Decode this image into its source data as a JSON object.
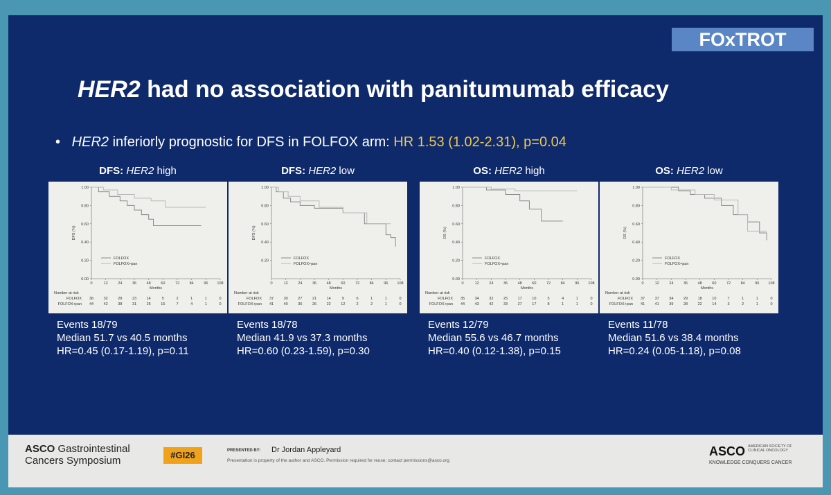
{
  "logo": "FOxTROT",
  "title": {
    "italic": "HER2",
    "rest": " had no association with panitumumab efficacy"
  },
  "bullet": {
    "italic": "HER2",
    "text": " inferiorly prognostic for DFS in FOLFOX arm: ",
    "highlight": "HR 1.53 (1.02-2.31), p=0.04"
  },
  "panels": [
    {
      "heading": {
        "bold": "DFS:",
        "italic": "HER2",
        "rest": " high"
      },
      "chart": {
        "type": "step",
        "ylabel": "DFS (%)",
        "xlabel": "Months",
        "xlim": [
          0,
          108
        ],
        "xticks": [
          0,
          12,
          24,
          36,
          48,
          60,
          72,
          84,
          96,
          108
        ],
        "ylim": [
          0,
          1
        ],
        "yticks": [
          {
            "value": 0,
            "label": "0.00"
          },
          {
            "value": 0.2,
            "label": "0.20"
          },
          {
            "value": 0.4,
            "label": "0.40"
          },
          {
            "value": 0.6,
            "label": "0.60"
          },
          {
            "value": 0.8,
            "label": "0.80"
          },
          {
            "value": 1,
            "label": "1.00"
          }
        ],
        "series": [
          {
            "name": "FOLFOX",
            "color": "#8a8a8a",
            "x": [
              0,
              6,
              15,
              24,
              30,
              36,
              42,
              48,
              52,
              92
            ],
            "values": [
              1,
              0.95,
              0.9,
              0.85,
              0.8,
              0.75,
              0.7,
              0.65,
              0.58,
              0.58
            ]
          },
          {
            "name": "FOLFOX+pan",
            "color": "#b8b8b8",
            "x": [
              0,
              10,
              22,
              36,
              50,
              62,
              96
            ],
            "values": [
              1,
              0.97,
              0.92,
              0.88,
              0.85,
              0.78,
              0.78
            ]
          }
        ],
        "risk_title": "Number at risk",
        "risk": [
          [
            36,
            32,
            28,
            23,
            14,
            5,
            2,
            1,
            1,
            0
          ],
          [
            44,
            42,
            38,
            31,
            25,
            16,
            7,
            4,
            1,
            0
          ]
        ]
      },
      "events": "Events 18/79",
      "median": "Median 51.7 vs 40.5 months",
      "hr": "HR=0.45 (0.17-1.19), p=0.11"
    },
    {
      "heading": {
        "bold": "DFS:",
        "italic": "HER2",
        "rest": " low"
      },
      "chart": {
        "type": "step",
        "ylabel": "DFS (%)",
        "xlabel": "Months",
        "xlim": [
          0,
          108
        ],
        "xticks": [
          0,
          12,
          24,
          36,
          48,
          60,
          72,
          84,
          96,
          108
        ],
        "ylim": [
          0,
          1
        ],
        "yticks": [
          {
            "value": 0.2,
            "label": "0.20"
          },
          {
            "value": 0.4,
            "label": "0.40"
          },
          {
            "value": 0.6,
            "label": "0.60"
          },
          {
            "value": 0.8,
            "label": "0.80"
          },
          {
            "value": 1,
            "label": "1.00"
          }
        ],
        "series": [
          {
            "name": "FOLFOX",
            "color": "#8a8a8a",
            "x": [
              0,
              4,
              10,
              16,
              24,
              36,
              60,
              78,
              96,
              100,
              104
            ],
            "values": [
              1,
              0.95,
              0.88,
              0.84,
              0.8,
              0.77,
              0.72,
              0.6,
              0.48,
              0.45,
              0.35
            ]
          },
          {
            "name": "FOLFOX+pan",
            "color": "#b8b8b8",
            "x": [
              0,
              6,
              14,
              24,
              40,
              60,
              80,
              100
            ],
            "values": [
              1,
              0.95,
              0.9,
              0.85,
              0.78,
              0.72,
              0.6,
              0.6
            ]
          }
        ],
        "risk_title": "Number at risk",
        "risk": [
          [
            37,
            30,
            27,
            21,
            14,
            9,
            6,
            1,
            1,
            0
          ],
          [
            41,
            40,
            36,
            26,
            22,
            12,
            2,
            2,
            1,
            0
          ]
        ]
      },
      "events": "Events 18/78",
      "median": "Median 41.9 vs 37.3 months",
      "hr": "HR=0.60 (0.23-1.59), p=0.30"
    },
    {
      "heading": {
        "bold": "OS:",
        "italic": "HER2",
        "rest": " high"
      },
      "chart": {
        "type": "step",
        "ylabel": "OS (%)",
        "xlabel": "Months",
        "xlim": [
          0,
          108
        ],
        "xticks": [
          0,
          12,
          24,
          36,
          48,
          60,
          72,
          84,
          96,
          108
        ],
        "ylim": [
          0,
          1
        ],
        "yticks": [
          {
            "value": 0,
            "label": "0.00"
          },
          {
            "value": 0.2,
            "label": "0.20"
          },
          {
            "value": 0.4,
            "label": "0.40"
          },
          {
            "value": 0.6,
            "label": "0.60"
          },
          {
            "value": 0.8,
            "label": "0.80"
          },
          {
            "value": 1,
            "label": "1.00"
          }
        ],
        "series": [
          {
            "name": "FOLFOX",
            "color": "#8a8a8a",
            "x": [
              0,
              20,
              36,
              48,
              56,
              66,
              84
            ],
            "values": [
              1,
              0.97,
              0.92,
              0.85,
              0.76,
              0.63,
              0.63
            ]
          },
          {
            "name": "FOLFOX+pan",
            "color": "#b8b8b8",
            "x": [
              0,
              24,
              44,
              96
            ],
            "values": [
              1,
              0.98,
              0.96,
              0.96
            ]
          }
        ],
        "risk_title": "Number at risk",
        "risk": [
          [
            35,
            34,
            32,
            25,
            17,
            10,
            5,
            4,
            1,
            0
          ],
          [
            44,
            43,
            42,
            33,
            27,
            17,
            8,
            1,
            1,
            0
          ]
        ]
      },
      "events": "Events 12/79",
      "median": "Median 55.6 vs 46.7 months",
      "hr": "HR=0.40 (0.12-1.38), p=0.15"
    },
    {
      "heading": {
        "bold": "OS:",
        "italic": "HER2",
        "rest": " low"
      },
      "chart": {
        "type": "step",
        "ylabel": "OS (%)",
        "xlabel": "Months",
        "xlim": [
          0,
          108
        ],
        "xticks": [
          0,
          12,
          24,
          36,
          48,
          60,
          72,
          84,
          96,
          108
        ],
        "ylim": [
          0,
          1
        ],
        "yticks": [
          {
            "value": 0,
            "label": "0.00"
          },
          {
            "value": 0.2,
            "label": "0.20"
          },
          {
            "value": 0.4,
            "label": "0.40"
          },
          {
            "value": 0.6,
            "label": "0.60"
          },
          {
            "value": 0.8,
            "label": "0.80"
          },
          {
            "value": 1,
            "label": "1.00"
          }
        ],
        "series": [
          {
            "name": "FOLFOX",
            "color": "#8a8a8a",
            "x": [
              0,
              30,
              40,
              52,
              66,
              76,
              88,
              98,
              104
            ],
            "values": [
              1,
              0.96,
              0.92,
              0.88,
              0.8,
              0.7,
              0.62,
              0.5,
              0.42
            ]
          },
          {
            "name": "FOLFOX+pan",
            "color": "#b8b8b8",
            "x": [
              0,
              24,
              44,
              60,
              80,
              88,
              104
            ],
            "values": [
              1,
              0.97,
              0.92,
              0.86,
              0.7,
              0.52,
              0.52
            ]
          }
        ],
        "risk_title": "Number at risk",
        "risk": [
          [
            37,
            37,
            34,
            29,
            18,
            10,
            7,
            1,
            1,
            0
          ],
          [
            41,
            41,
            39,
            28,
            22,
            14,
            3,
            2,
            1,
            0
          ]
        ]
      },
      "events": "Events 11/78",
      "median": "Median 51.6 vs 38.4 months",
      "hr": "HR=0.24 (0.05-1.18), p=0.08"
    }
  ],
  "footer": {
    "meeting_bold": "ASCO",
    "meeting_rest": " Gastrointestinal",
    "meeting_line2": "Cancers Symposium",
    "tag": "#GI26",
    "presented_by": "PRESENTED BY:",
    "presenter": "Dr Jordan Appleyard",
    "notice": "Presentation is property of the author and ASCO. Permission required for reuse; contact permissions@asco.org",
    "org": "ASCO",
    "org_full": "AMERICAN SOCIETY OF CLINICAL ONCOLOGY",
    "motto": "KNOWLEDGE CONQUERS CANCER"
  }
}
